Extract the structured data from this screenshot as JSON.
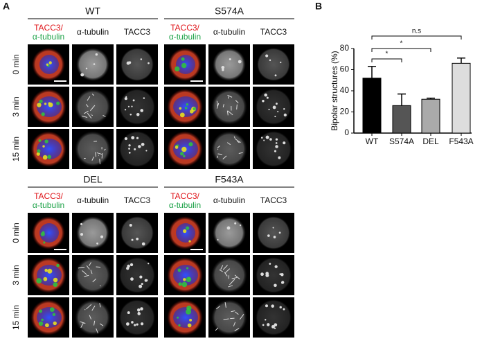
{
  "panel_labels": [
    "A",
    "B"
  ],
  "microscopy": {
    "groups": [
      "WT",
      "S574A",
      "DEL",
      "F543A"
    ],
    "column_labels": {
      "merge_red": "TACC3/",
      "merge_green": "α-tubulin",
      "tubulin": "α-tubulin",
      "tacc3": "TACC3"
    },
    "row_labels": [
      "0 min",
      "3 min",
      "15 min"
    ]
  },
  "chart_data": {
    "type": "bar",
    "y_label": "Bipolar structures (%)",
    "categories": [
      "WT",
      "S574A",
      "DEL",
      "F543A"
    ],
    "values": [
      52,
      26,
      32,
      66
    ],
    "errors": [
      11,
      11,
      1,
      5
    ],
    "colors": [
      "#000000",
      "#555555",
      "#aaaaaa",
      "#dddddd"
    ],
    "ylim": [
      0,
      80
    ],
    "yticks": [
      0,
      20,
      40,
      60,
      80
    ],
    "annotations": [
      "n.s",
      "*",
      "*"
    ]
  }
}
